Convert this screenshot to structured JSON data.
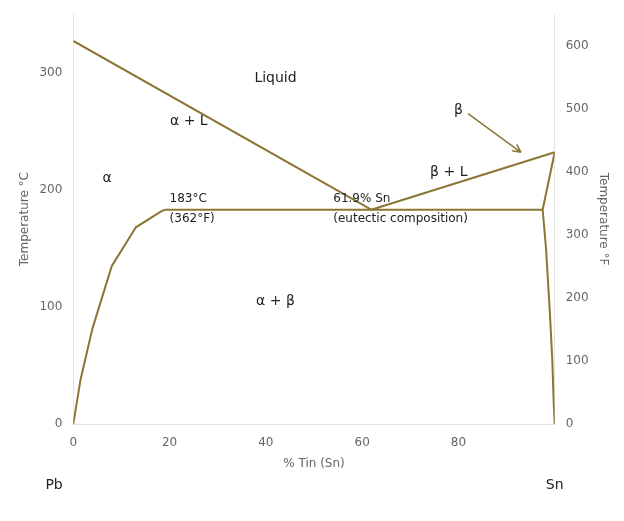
{
  "chart_data": {
    "type": "line",
    "xlabel": "% Tin (Sn)",
    "ylabel": "Temperature °C",
    "y2label": "Temperature °F",
    "xlim": [
      0,
      100
    ],
    "ylim": [
      0,
      350
    ],
    "y2lim": [
      0,
      650
    ],
    "xticks": [
      0,
      20,
      40,
      60,
      80
    ],
    "yticks": [
      0,
      100,
      200,
      300
    ],
    "y2ticks": [
      0,
      100,
      200,
      300,
      400,
      500,
      600
    ],
    "grid": false,
    "series": [
      {
        "color": "#8B7535",
        "x": [
          0,
          61.9
        ],
        "values": [
          327,
          183
        ]
      },
      {
        "color": "#8B7535",
        "x": [
          61.9,
          100
        ],
        "values": [
          183,
          232
        ]
      },
      {
        "color": "#8B7535",
        "x": [
          97.5,
          100
        ],
        "values": [
          183,
          232
        ]
      },
      {
        "color": "#8B7535",
        "x": [
          19,
          97.5
        ],
        "values": [
          183,
          183
        ]
      },
      {
        "color": "#8B7535",
        "x": [
          0.0,
          1.5,
          4.0,
          8.0,
          13.0,
          18.0,
          19.0
        ],
        "values": [
          0,
          38,
          82,
          135,
          168,
          181,
          183
        ]
      },
      {
        "color": "#8B7535",
        "x": [
          97.5,
          98.2,
          99.0,
          99.5,
          99.8,
          100.0
        ],
        "values": [
          183,
          150,
          95,
          55,
          18,
          0
        ]
      }
    ],
    "annotations": [
      {
        "text": "Liquid",
        "x": 42,
        "y": 295,
        "align": "center"
      },
      {
        "text": "α + L",
        "x": 24,
        "y": 258,
        "align": "center"
      },
      {
        "text": "β + L",
        "x": 78,
        "y": 215,
        "align": "center"
      },
      {
        "text": "α",
        "x": 7,
        "y": 210,
        "align": "center"
      },
      {
        "text": "β",
        "x": 80,
        "y": 268,
        "align": "center"
      },
      {
        "text": "α + β",
        "x": 42,
        "y": 105,
        "align": "center"
      },
      {
        "text": "183°C",
        "x": 20,
        "y": 192,
        "align": "left"
      },
      {
        "text": "(362°F)",
        "x": 20,
        "y": 175,
        "align": "left"
      },
      {
        "text": "61.9% Sn",
        "x": 54,
        "y": 192,
        "align": "left"
      },
      {
        "text": "(eutectic composition)",
        "x": 54,
        "y": 175,
        "align": "left"
      },
      {
        "text": "Pb",
        "x": -4,
        "y": -52,
        "align": "center"
      },
      {
        "text": "Sn",
        "x": 100,
        "y": -52,
        "align": "center"
      }
    ],
    "arrows": [
      {
        "from": [
          82,
          265
        ],
        "to": [
          93,
          232
        ],
        "color": "#8B7535"
      }
    ]
  }
}
